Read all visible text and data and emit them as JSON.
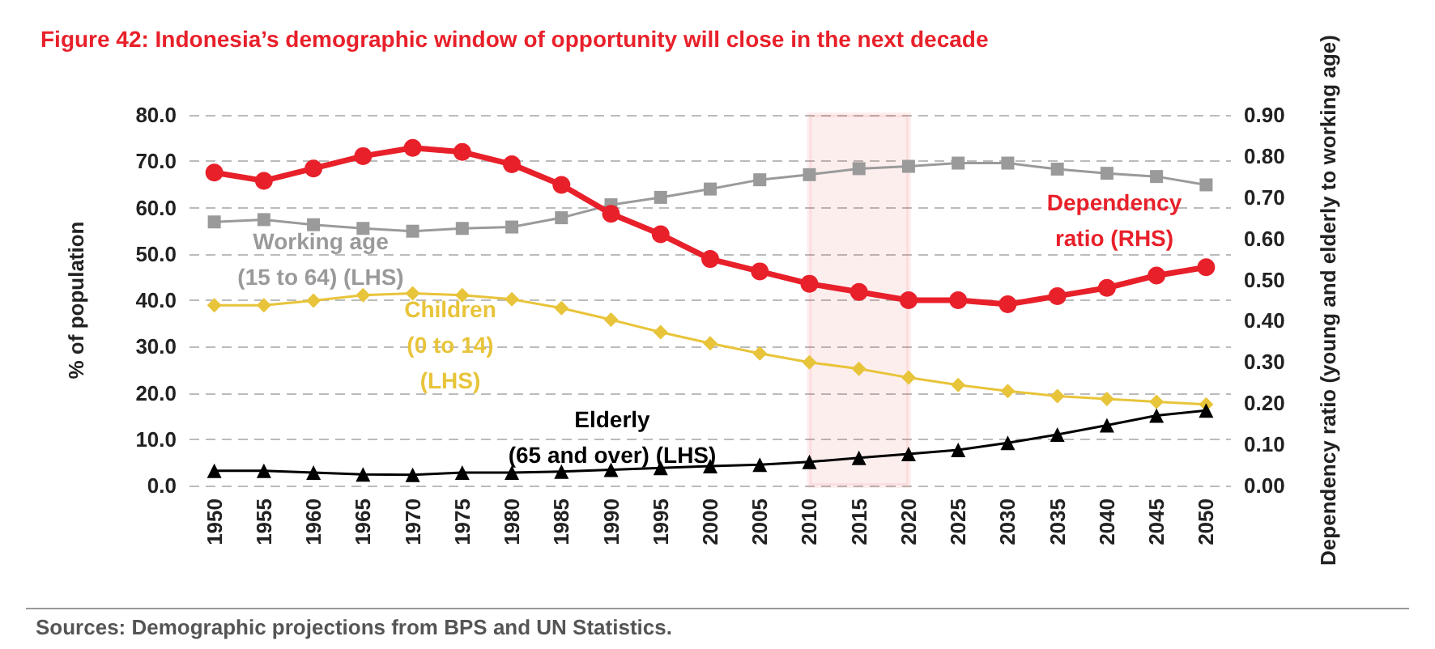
{
  "chart_data": {
    "type": "line",
    "title": "Figure 42: Indonesia’s demographic window of opportunity will close in the next decade",
    "ylabel": "% of population",
    "y2label": "Dependency ratio (young and elderly to working age)",
    "annotations": [
      "Sources: Demographic projections from BPS and UN Statistics."
    ],
    "categories": [
      "1950",
      "1955",
      "1960",
      "1965",
      "1970",
      "1975",
      "1980",
      "1985",
      "1990",
      "1995",
      "2000",
      "2005",
      "2010",
      "2015",
      "2020",
      "2025",
      "2030",
      "2035",
      "2040",
      "2045",
      "2050"
    ],
    "series": [
      {
        "name": "Working age\n(15 to 64) (LHS)",
        "color": "#9a9a9a",
        "marker": "square",
        "values": [
          56.9,
          57.4,
          56.3,
          55.5,
          54.9,
          55.5,
          55.8,
          57.8,
          60.6,
          62.2,
          64.0,
          66.0,
          67.1,
          68.4,
          68.9,
          69.6,
          69.6,
          68.3,
          67.4,
          66.7,
          64.9
        ]
      },
      {
        "name": "Children\n(0 to 14)\n(LHS)",
        "color": "#e8c43a",
        "marker": "diamond",
        "values": [
          38.9,
          38.9,
          39.9,
          41.1,
          41.5,
          41.1,
          40.2,
          38.3,
          35.8,
          33.1,
          30.7,
          28.5,
          26.6,
          25.2,
          23.3,
          21.7,
          20.4,
          19.3,
          18.7,
          18.1,
          17.5
        ]
      },
      {
        "name": "Elderly\n(65 and over) (LHS)",
        "color": "#000000",
        "marker": "triangle",
        "values": [
          3.2,
          3.2,
          2.8,
          2.4,
          2.3,
          2.8,
          2.8,
          3.0,
          3.4,
          3.8,
          4.2,
          4.5,
          5.1,
          6.0,
          6.8,
          7.7,
          9.2,
          11.0,
          13.0,
          15.1,
          16.2
        ]
      },
      {
        "name": "Dependency\nratio (RHS)",
        "color": "#e8202a",
        "marker": "circle",
        "axis": "y2",
        "values": [
          0.76,
          0.74,
          0.77,
          0.8,
          0.82,
          0.81,
          0.78,
          0.73,
          0.66,
          0.61,
          0.55,
          0.52,
          0.49,
          0.47,
          0.45,
          0.45,
          0.44,
          0.46,
          0.48,
          0.51,
          0.53
        ]
      }
    ],
    "ylim": [
      0,
      80
    ],
    "yticks": [
      {
        "value": 0,
        "label": "0.0"
      },
      {
        "value": 10,
        "label": "10.0"
      },
      {
        "value": 20,
        "label": "20.0"
      },
      {
        "value": 30,
        "label": "30.0"
      },
      {
        "value": 40,
        "label": "40.0"
      },
      {
        "value": 50,
        "label": "50.0"
      },
      {
        "value": 60,
        "label": "60.0"
      },
      {
        "value": 70,
        "label": "70.0"
      },
      {
        "value": 80,
        "label": "80.0"
      }
    ],
    "y2lim": [
      0,
      0.9
    ],
    "y2ticks": [
      {
        "value": 0,
        "label": "0.00"
      },
      {
        "value": 0.1,
        "label": "0.10"
      },
      {
        "value": 0.2,
        "label": "0.20"
      },
      {
        "value": 0.3,
        "label": "0.30"
      },
      {
        "value": 0.4,
        "label": "0.40"
      },
      {
        "value": 0.5,
        "label": "0.50"
      },
      {
        "value": 0.6,
        "label": "0.60"
      },
      {
        "value": 0.7,
        "label": "0.70"
      },
      {
        "value": 0.8,
        "label": "0.80"
      },
      {
        "value": 0.9,
        "label": "0.90"
      }
    ],
    "bands": [
      {
        "axis": "x",
        "from": "2010",
        "to": "2020",
        "color": "#e8202a"
      }
    ],
    "grid": "y",
    "legend": false,
    "line_style": "solid"
  }
}
